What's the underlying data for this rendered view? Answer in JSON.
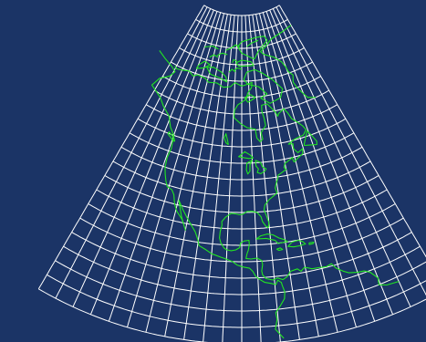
{
  "map": {
    "projection": "conic",
    "background_color": "#1b3466",
    "graticule_color": "#ffffff",
    "coastline_color": "#22e622",
    "graticule": {
      "lat_step_deg": 5,
      "lon_step_deg": 5,
      "lat_min": -10,
      "lat_max": 90,
      "lon_min": -145,
      "lon_max": -35
    },
    "center_lon": -90,
    "visible_regions": [
      "north-america",
      "central-america",
      "caribbean",
      "greenland",
      "canadian-arctic"
    ]
  }
}
